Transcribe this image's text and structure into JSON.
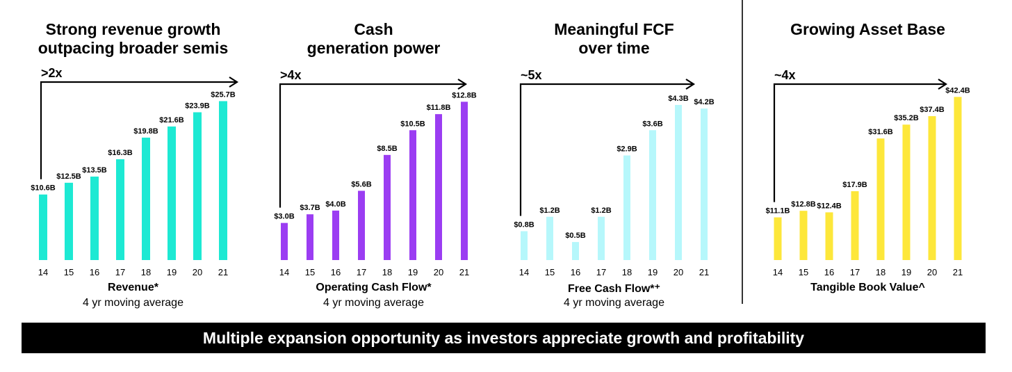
{
  "banner": "Multiple expansion opportunity as investors appreciate growth and profitability",
  "chart_data": [
    {
      "type": "bar",
      "title_lines": [
        "Strong revenue growth",
        "outpacing broader semis"
      ],
      "multiplier": ">2x",
      "categories": [
        "14",
        "15",
        "16",
        "17",
        "18",
        "19",
        "20",
        "21"
      ],
      "values": [
        10.6,
        12.5,
        13.5,
        16.3,
        19.8,
        21.6,
        23.9,
        25.7
      ],
      "labels": [
        "$10.6B",
        "$12.5B",
        "$13.5B",
        "$16.3B",
        "$19.8B",
        "$21.6B",
        "$23.9B",
        "$25.7B"
      ],
      "xlabel": "Revenue*",
      "subtitle": "4 yr moving average",
      "color": "#1de9d3",
      "ylim": [
        0,
        28
      ]
    },
    {
      "type": "bar",
      "title_lines": [
        "Cash",
        "generation power"
      ],
      "multiplier": ">4x",
      "categories": [
        "14",
        "15",
        "16",
        "17",
        "18",
        "19",
        "20",
        "21"
      ],
      "values": [
        3.0,
        3.7,
        4.0,
        5.6,
        8.5,
        10.5,
        11.8,
        12.8
      ],
      "labels": [
        "$3.0B",
        "$3.7B",
        "$4.0B",
        "$5.6B",
        "$8.5B",
        "$10.5B",
        "$11.8B",
        "$12.8B"
      ],
      "xlabel": "Operating Cash Flow*",
      "subtitle": "4 yr moving average",
      "color": "#9b3df2",
      "ylim": [
        0,
        14
      ]
    },
    {
      "type": "bar",
      "title_lines": [
        "Meaningful FCF",
        "over time"
      ],
      "multiplier": "~5x",
      "categories": [
        "14",
        "15",
        "16",
        "17",
        "18",
        "19",
        "20",
        "21"
      ],
      "values": [
        0.8,
        1.2,
        0.5,
        1.2,
        2.9,
        3.6,
        4.3,
        4.2
      ],
      "labels": [
        "$0.8B",
        "$1.2B",
        "$0.5B",
        "$1.2B",
        "$2.9B",
        "$3.6B",
        "$4.3B",
        "$4.2B"
      ],
      "xlabel": "Free Cash Flow*⁺",
      "subtitle": "4 yr moving average",
      "color": "#b6f7fb",
      "ylim": [
        0,
        4.8
      ]
    },
    {
      "type": "bar",
      "title_lines": [
        "Growing Asset Base"
      ],
      "multiplier": "~4x",
      "categories": [
        "14",
        "15",
        "16",
        "17",
        "18",
        "19",
        "20",
        "21"
      ],
      "values": [
        11.1,
        12.8,
        12.4,
        17.9,
        31.6,
        35.2,
        37.4,
        42.4
      ],
      "labels": [
        "$11.1B",
        "$12.8B",
        "$12.4B",
        "$17.9B",
        "$31.6B",
        "$35.2B",
        "$37.4B",
        "$42.4B"
      ],
      "xlabel": "Tangible Book Value^",
      "subtitle": "",
      "color": "#fde73a",
      "ylim": [
        0,
        45
      ]
    }
  ]
}
